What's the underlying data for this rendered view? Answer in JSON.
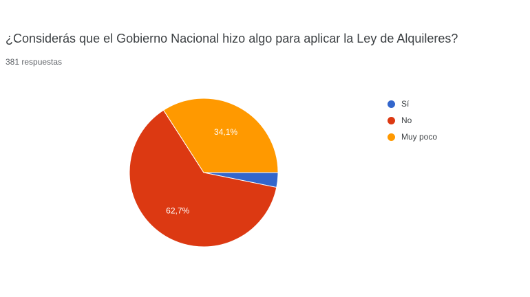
{
  "chart_data": {
    "type": "pie",
    "title": "¿Considerás que el Gobierno Nacional hizo algo para aplicar la Ley de Alquileres?",
    "subtitle": "381 respuestas",
    "slices": [
      {
        "label": "Sí",
        "value": 3.2,
        "color": "#3366cc",
        "data_label": ""
      },
      {
        "label": "No",
        "value": 62.7,
        "color": "#dc3912",
        "data_label": "62,7%"
      },
      {
        "label": "Muy poco",
        "value": 34.1,
        "color": "#ff9900",
        "data_label": "34,1%"
      }
    ],
    "legend_position": "right"
  }
}
